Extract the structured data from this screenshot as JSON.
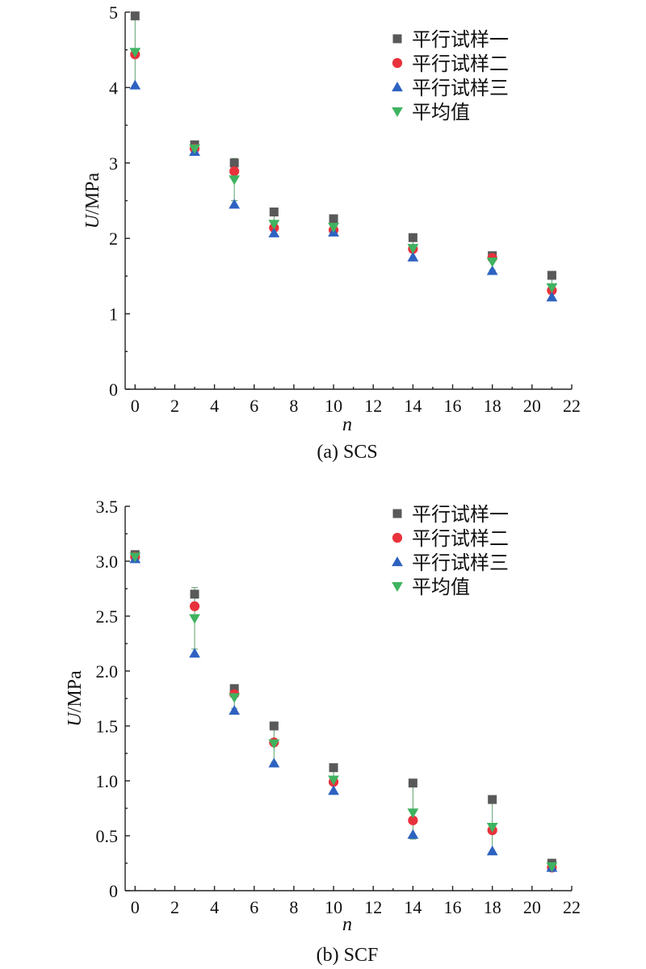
{
  "figure": "U vs n",
  "chart_data": [
    {
      "type": "scatter",
      "caption": "(a) SCS",
      "xlabel": "n",
      "ylabel": "U/MPa",
      "xlim": [
        -0.5,
        22
      ],
      "ylim": [
        0,
        5
      ],
      "xticks": [
        0,
        2,
        4,
        6,
        8,
        10,
        12,
        14,
        16,
        18,
        20,
        22
      ],
      "yticks": [
        0,
        1,
        2,
        3,
        4,
        5
      ],
      "ytick_labels": [
        "0",
        "1",
        "2",
        "3",
        "4",
        "5"
      ],
      "legend_position": "top-right",
      "x": [
        0,
        3,
        5,
        7,
        10,
        14,
        18,
        21
      ],
      "series": [
        {
          "name": "平行试样一",
          "marker": "square",
          "color": "#595959",
          "values": [
            4.95,
            3.24,
            3.0,
            2.35,
            2.26,
            2.01,
            1.77,
            1.51
          ]
        },
        {
          "name": "平行试样二",
          "marker": "circle",
          "color": "#e8323c",
          "values": [
            4.44,
            3.19,
            2.89,
            2.14,
            2.11,
            1.86,
            1.74,
            1.31
          ]
        },
        {
          "name": "平行试样三",
          "marker": "triangle-up",
          "color": "#2e62c1",
          "values": [
            4.03,
            3.15,
            2.45,
            2.07,
            2.08,
            1.75,
            1.57,
            1.22
          ]
        },
        {
          "name": "平均值",
          "marker": "triangle-down",
          "color": "#3fb360",
          "values": [
            4.47,
            3.19,
            2.78,
            2.19,
            2.15,
            1.87,
            1.69,
            1.35
          ]
        }
      ],
      "error_bars": {
        "series": "平均值",
        "color": "#5aa06e",
        "err": [
          0.47,
          0.05,
          0.28,
          0.15,
          0.09,
          0.13,
          0.11,
          0.15
        ]
      }
    },
    {
      "type": "scatter",
      "caption": "(b) SCF",
      "xlabel": "n",
      "ylabel": "U/MPa",
      "xlim": [
        -0.5,
        22
      ],
      "ylim": [
        0,
        3.5
      ],
      "xticks": [
        0,
        2,
        4,
        6,
        8,
        10,
        12,
        14,
        16,
        18,
        20,
        22
      ],
      "yticks": [
        0,
        0.5,
        1.0,
        1.5,
        2.0,
        2.5,
        3.0,
        3.5
      ],
      "ytick_labels": [
        "0",
        "0.5",
        "1.0",
        "1.5",
        "2.0",
        "2.5",
        "3.0",
        "3.5"
      ],
      "legend_position": "top-right",
      "x": [
        0,
        3,
        5,
        7,
        10,
        14,
        18,
        21
      ],
      "series": [
        {
          "name": "平行试样一",
          "marker": "square",
          "color": "#595959",
          "values": [
            3.06,
            2.7,
            1.84,
            1.5,
            1.12,
            0.98,
            0.83,
            0.25
          ]
        },
        {
          "name": "平行试样二",
          "marker": "circle",
          "color": "#e8323c",
          "values": [
            3.04,
            2.59,
            1.79,
            1.35,
            0.99,
            0.64,
            0.55,
            0.21
          ]
        },
        {
          "name": "平行试样三",
          "marker": "triangle-up",
          "color": "#2e62c1",
          "values": [
            3.02,
            2.16,
            1.64,
            1.16,
            0.91,
            0.51,
            0.36,
            0.21
          ]
        },
        {
          "name": "平均值",
          "marker": "triangle-down",
          "color": "#3fb360",
          "values": [
            3.04,
            2.48,
            1.76,
            1.34,
            1.01,
            0.71,
            0.58,
            0.22
          ]
        }
      ],
      "error_bars": {
        "series": "平均值",
        "color": "#5aa06e",
        "err": [
          0.02,
          0.28,
          0.1,
          0.17,
          0.11,
          0.24,
          0.24,
          0.02
        ]
      }
    }
  ]
}
